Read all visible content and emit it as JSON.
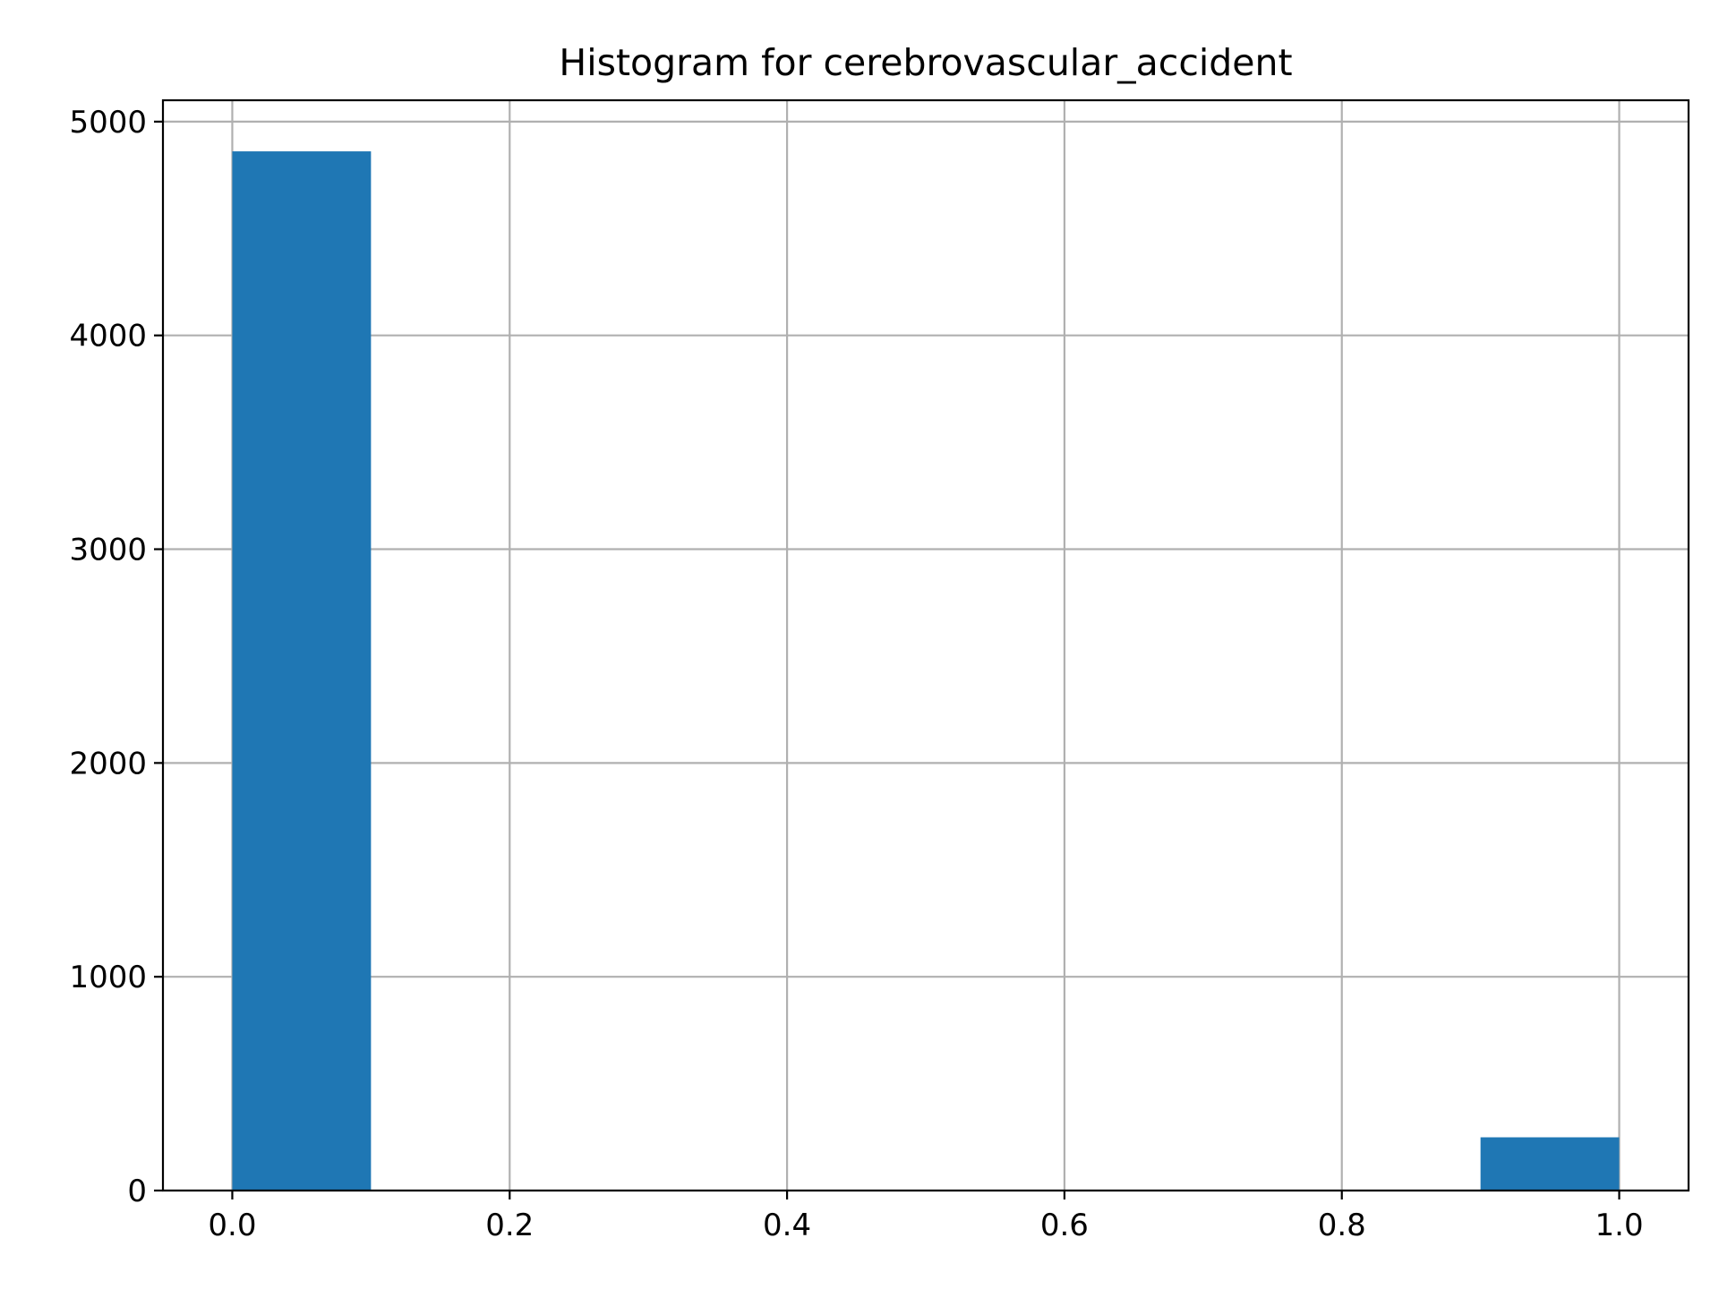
{
  "chart_data": {
    "type": "bar",
    "subtype": "histogram",
    "title": "Histogram for cerebrovascular_accident",
    "xlabel": "",
    "ylabel": "",
    "xlim": [
      -0.05,
      1.05
    ],
    "ylim": [
      0,
      5100
    ],
    "x_ticks": [
      0.0,
      0.2,
      0.4,
      0.6,
      0.8,
      1.0
    ],
    "x_tick_labels": [
      "0.0",
      "0.2",
      "0.4",
      "0.6",
      "0.8",
      "1.0"
    ],
    "y_ticks": [
      0,
      1000,
      2000,
      3000,
      4000,
      5000
    ],
    "y_tick_labels": [
      "0",
      "1000",
      "2000",
      "3000",
      "4000",
      "5000"
    ],
    "bin_edges": [
      0.0,
      0.1,
      0.2,
      0.3,
      0.4,
      0.5,
      0.6,
      0.7,
      0.8,
      0.9,
      1.0
    ],
    "counts": [
      4861,
      0,
      0,
      0,
      0,
      0,
      0,
      0,
      0,
      249
    ],
    "grid": true,
    "bar_color": "#1f77b4"
  }
}
